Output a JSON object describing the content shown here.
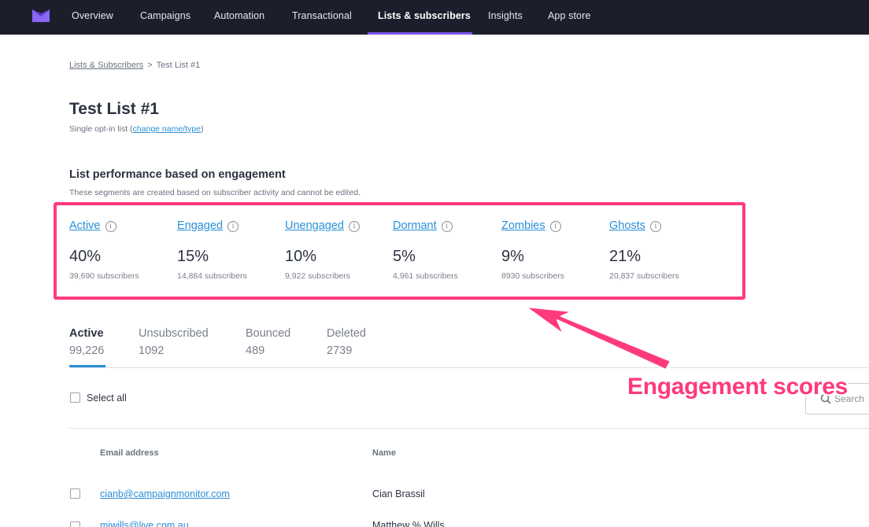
{
  "nav": {
    "items": [
      {
        "label": "Overview"
      },
      {
        "label": "Campaigns"
      },
      {
        "label": "Automation"
      },
      {
        "label": "Transactional"
      },
      {
        "label": "Lists & subscribers"
      },
      {
        "label": "Insights"
      },
      {
        "label": "App store"
      }
    ],
    "active_index": 4,
    "accent": "#7b55f0",
    "background": "#1d1e2c"
  },
  "breadcrumb": {
    "parent": "Lists & Subscribers",
    "separator": ">",
    "current": "Test List #1"
  },
  "page": {
    "title": "Test List #1",
    "subtitle_prefix": "Single opt-in list (",
    "subtitle_link": "change name/type",
    "subtitle_suffix": ")"
  },
  "performance": {
    "title": "List performance based on engagement",
    "description": "These segments are created based on subscriber activity and cannot be edited.",
    "segments": [
      {
        "label": "Active",
        "percent": "40%",
        "subscribers": "39,690 subscribers"
      },
      {
        "label": "Engaged",
        "percent": "15%",
        "subscribers": "14,884 subscribers"
      },
      {
        "label": "Unengaged",
        "percent": "10%",
        "subscribers": "9,922 subscribers"
      },
      {
        "label": "Dormant",
        "percent": "5%",
        "subscribers": "4,961 subscribers"
      },
      {
        "label": "Zombies",
        "percent": "9%",
        "subscribers": "8930 subscribers"
      },
      {
        "label": "Ghosts",
        "percent": "21%",
        "subscribers": "20,837 subscribers"
      }
    ],
    "info_icon": "info-icon"
  },
  "tabs": [
    {
      "label": "Active",
      "count": "99,226"
    },
    {
      "label": "Unsubscribed",
      "count": "1092"
    },
    {
      "label": "Bounced",
      "count": "489"
    },
    {
      "label": "Deleted",
      "count": "2739"
    }
  ],
  "table": {
    "select_all_label": "Select all",
    "search_placeholder": "Search",
    "columns": [
      "Email address",
      "Name"
    ],
    "rows": [
      {
        "email": "cianb@campaignmonitor.com",
        "name": "Cian Brassil"
      },
      {
        "email": "mjwills@live.com.au",
        "name": "Matthew % Wills"
      }
    ]
  },
  "annotation": {
    "text": "Engagement scores",
    "color": "#ff3a7c"
  },
  "colors": {
    "link": "#2a8fd6",
    "highlight": "#ff3a7c"
  }
}
